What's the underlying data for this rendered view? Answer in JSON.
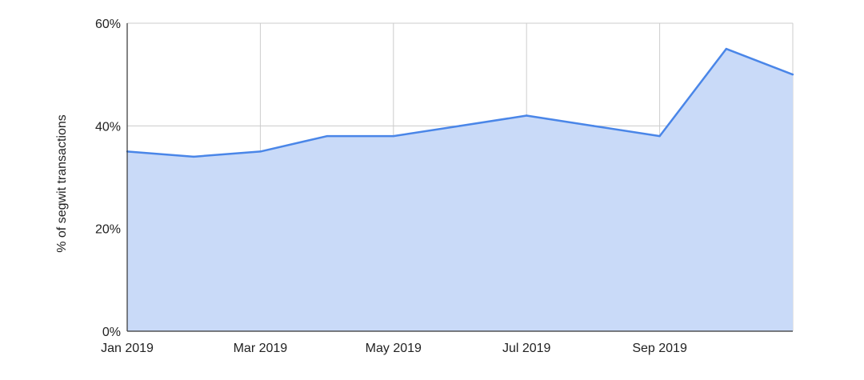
{
  "chart_data": {
    "type": "area",
    "title": "",
    "xlabel": "",
    "ylabel": "% of segwit transactions",
    "x": [
      "Jan 2019",
      "Feb 2019",
      "Mar 2019",
      "Apr 2019",
      "May 2019",
      "Jun 2019",
      "Jul 2019",
      "Aug 2019",
      "Sep 2019",
      "Oct 2019",
      "Nov 2019"
    ],
    "x_tick_labels": [
      "Jan 2019",
      "Mar 2019",
      "May 2019",
      "Jul 2019",
      "Sep 2019"
    ],
    "series": [
      {
        "values": [
          35,
          34,
          35,
          38,
          38,
          40,
          42,
          40,
          38,
          55,
          50
        ],
        "color": "#4a86e8",
        "fill": "#c9daf8"
      }
    ],
    "ylim": [
      0,
      60
    ],
    "y_ticks": [
      0,
      20,
      40,
      60
    ],
    "y_tick_suffix": "%",
    "grid": true,
    "legend": "none",
    "colors": {
      "gridline": "#cccccc",
      "axis": "#333333",
      "line": "#4a86e8",
      "area": "#c9daf8"
    }
  }
}
